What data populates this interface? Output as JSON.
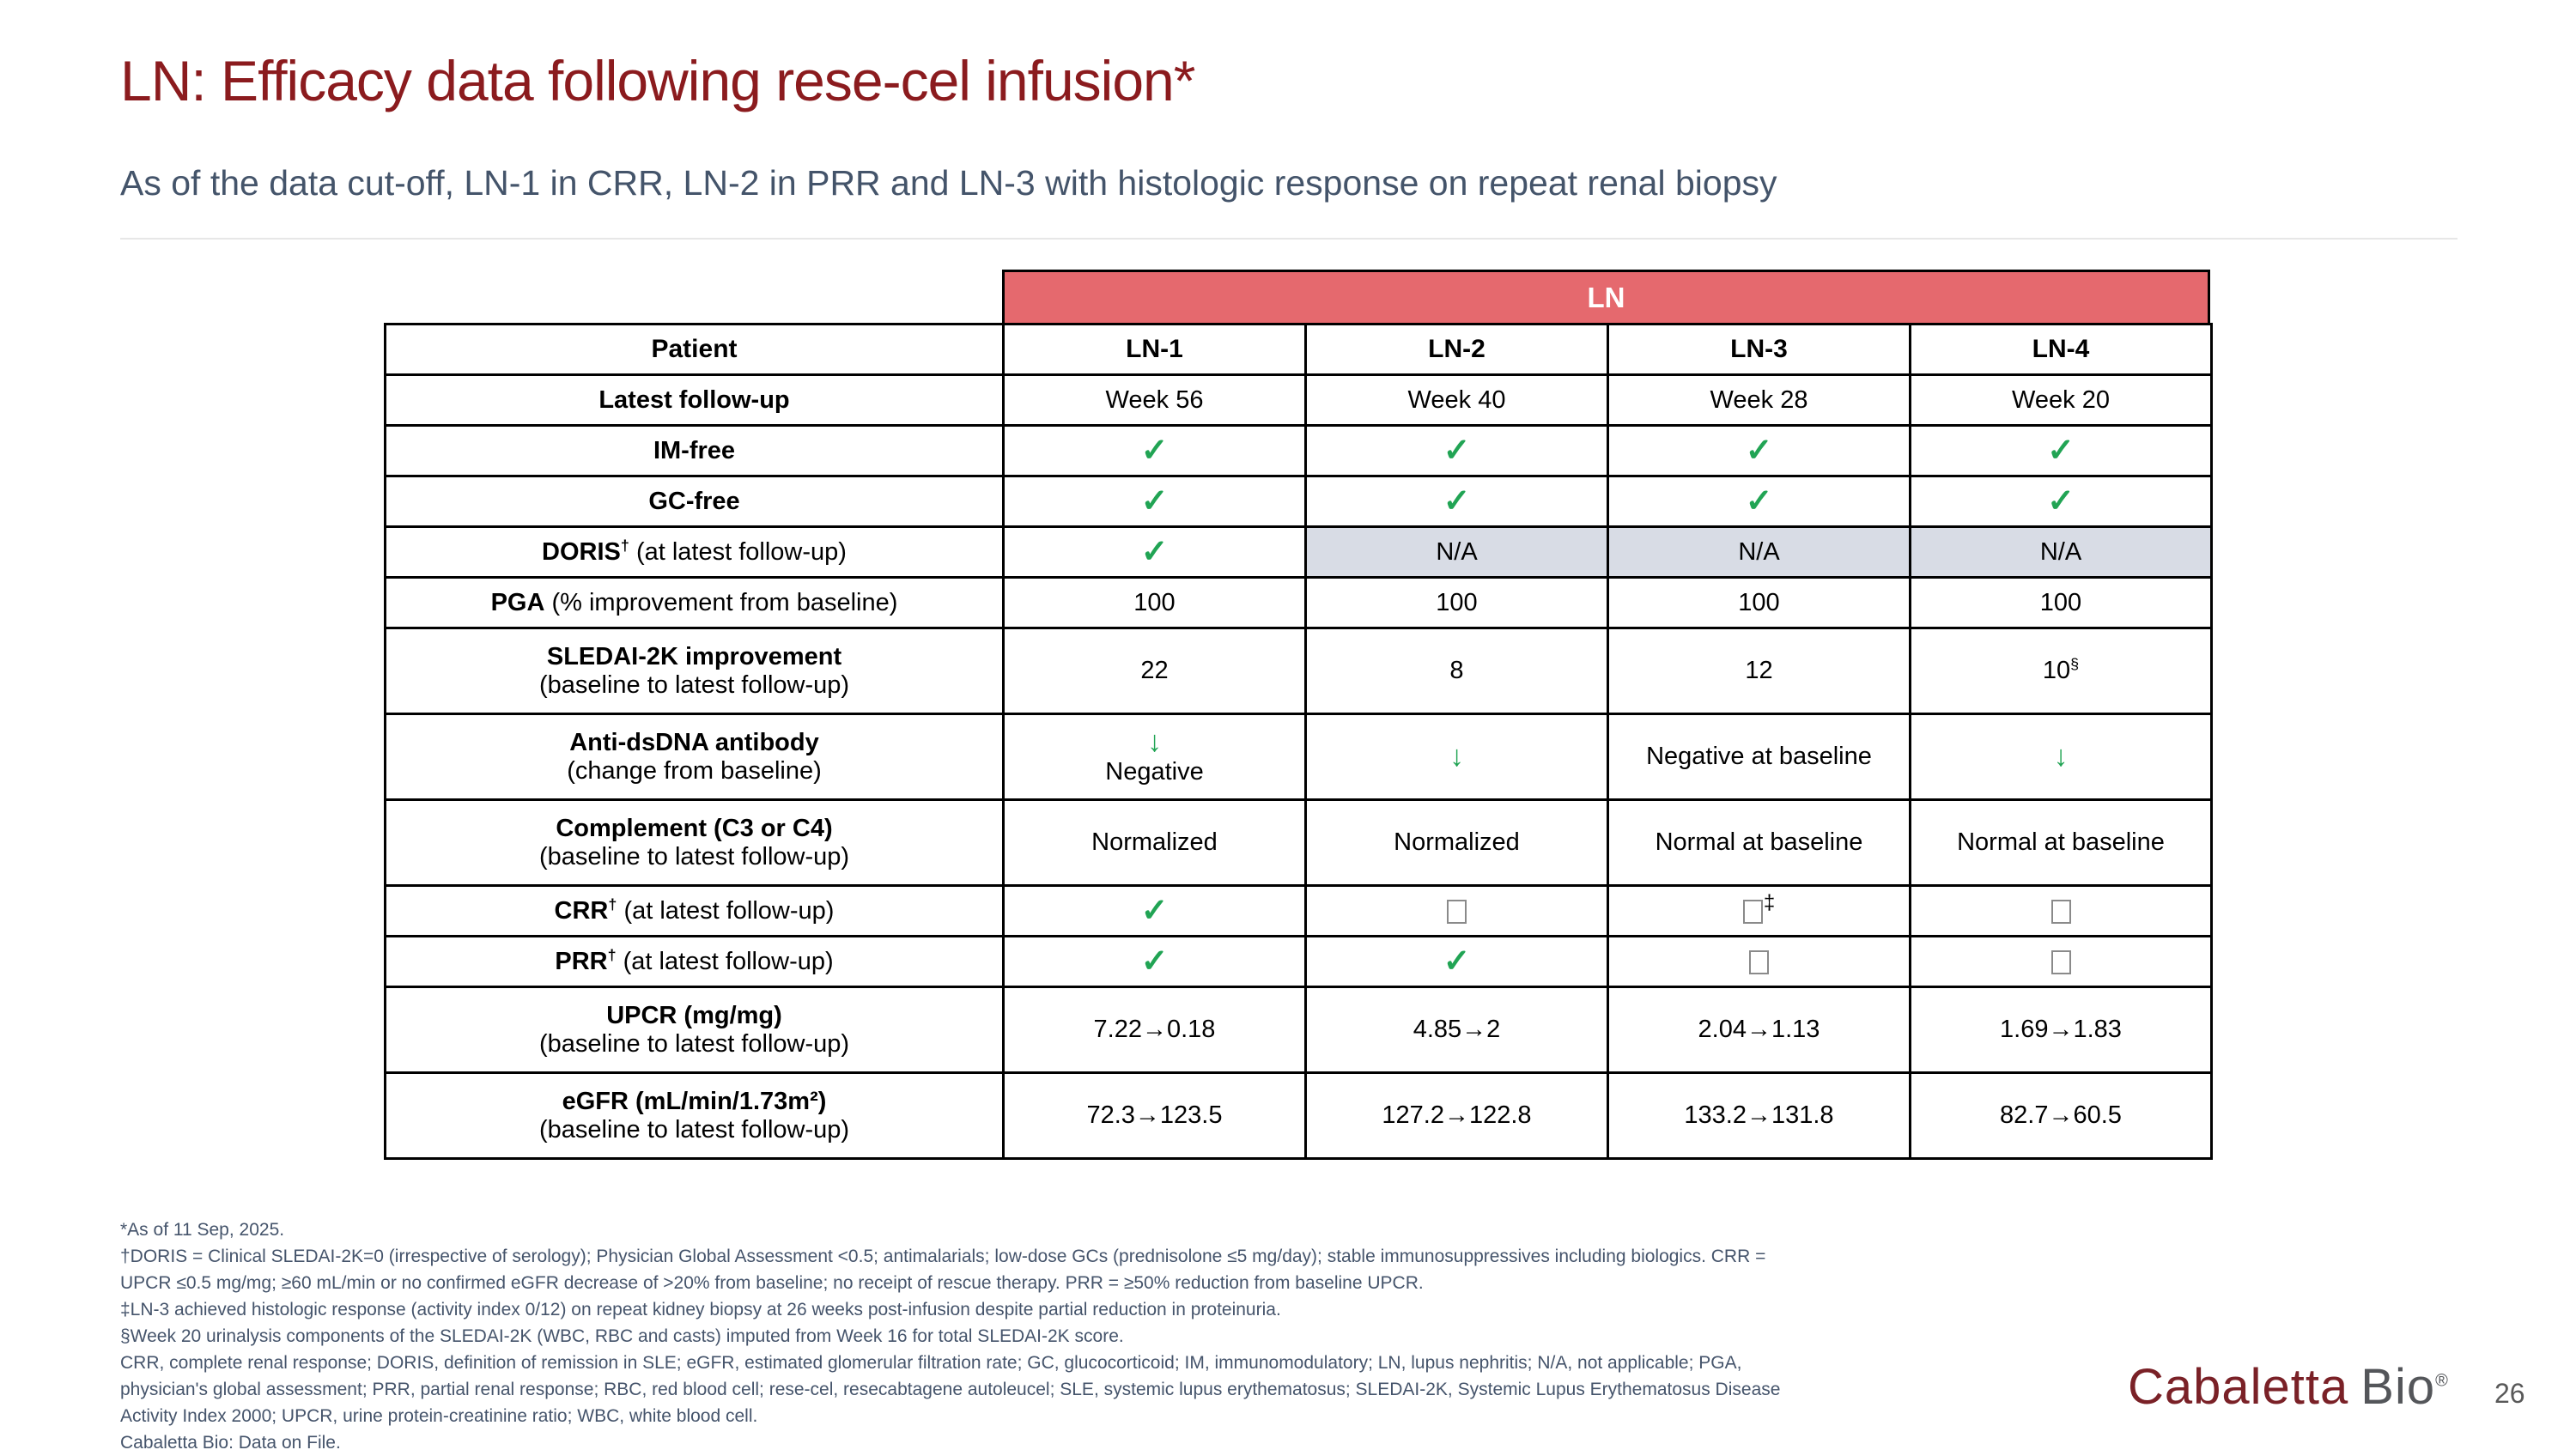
{
  "slide": {
    "title": "LN: Efficacy data following rese-cel infusion*",
    "subtitle": "As of the data cut-off, LN-1 in CRR, LN-2 in PRR and LN-3 with histologic response on repeat renal biopsy",
    "page_number": "26",
    "logo": {
      "part1": "Cabaletta",
      "part2": "Bio",
      "reg": "®"
    }
  },
  "icons": {
    "check_icon": "✓",
    "down_arrow_icon": "↓"
  },
  "colors": {
    "title_maroon": "#8B1B1E",
    "subtitle_slate": "#44546A",
    "banner_red": "#E5696E",
    "na_cell_bg": "#D8DCE5",
    "check_green": "#21A454",
    "logo_maroon": "#7A2127",
    "logo_gray": "#54565A"
  },
  "table": {
    "group_header": "LN",
    "row_label_header": "Patient",
    "columns": [
      "LN-1",
      "LN-2",
      "LN-3",
      "LN-4"
    ],
    "rows": [
      {
        "label": {
          "bold": "Latest follow-up"
        },
        "cells": [
          {
            "t": "text",
            "v": "Week 56"
          },
          {
            "t": "text",
            "v": "Week 40"
          },
          {
            "t": "text",
            "v": "Week 28"
          },
          {
            "t": "text",
            "v": "Week 20"
          }
        ]
      },
      {
        "label": {
          "bold": "IM-free"
        },
        "cells": [
          {
            "t": "check"
          },
          {
            "t": "check"
          },
          {
            "t": "check"
          },
          {
            "t": "check"
          }
        ]
      },
      {
        "label": {
          "bold": "GC-free"
        },
        "cells": [
          {
            "t": "check"
          },
          {
            "t": "check"
          },
          {
            "t": "check"
          },
          {
            "t": "check"
          }
        ]
      },
      {
        "label": {
          "bold": "DORIS",
          "sup": "†",
          "note": " (at latest follow-up)"
        },
        "cells": [
          {
            "t": "check"
          },
          {
            "t": "text",
            "v": "N/A",
            "na": true
          },
          {
            "t": "text",
            "v": "N/A",
            "na": true
          },
          {
            "t": "text",
            "v": "N/A",
            "na": true
          }
        ]
      },
      {
        "label": {
          "bold": "PGA",
          "note": " (% improvement from baseline)"
        },
        "cells": [
          {
            "t": "text",
            "v": "100"
          },
          {
            "t": "text",
            "v": "100"
          },
          {
            "t": "text",
            "v": "100"
          },
          {
            "t": "text",
            "v": "100"
          }
        ]
      },
      {
        "label": {
          "bold": "SLEDAI-2K improvement",
          "sub": "(baseline to latest follow-up)"
        },
        "tall": true,
        "cells": [
          {
            "t": "text",
            "v": "22"
          },
          {
            "t": "text",
            "v": "8"
          },
          {
            "t": "text",
            "v": "12"
          },
          {
            "t": "text",
            "v": "10",
            "sup": "§"
          }
        ]
      },
      {
        "label": {
          "bold": "Anti-dsDNA antibody",
          "sub": "(change from baseline)"
        },
        "tall": true,
        "cells": [
          {
            "t": "downtext",
            "v": "Negative"
          },
          {
            "t": "down"
          },
          {
            "t": "text",
            "v": "Negative at baseline"
          },
          {
            "t": "down"
          }
        ]
      },
      {
        "label": {
          "bold": "Complement (C3 or C4)",
          "sub": "(baseline to latest follow-up)"
        },
        "tall": true,
        "cells": [
          {
            "t": "text",
            "v": "Normalized"
          },
          {
            "t": "text",
            "v": "Normalized"
          },
          {
            "t": "text",
            "v": "Normal at baseline"
          },
          {
            "t": "text",
            "v": "Normal at baseline"
          }
        ]
      },
      {
        "label": {
          "bold": "CRR",
          "sup": "†",
          "note": " (at latest follow-up)"
        },
        "cells": [
          {
            "t": "check"
          },
          {
            "t": "box"
          },
          {
            "t": "box",
            "sup": "‡"
          },
          {
            "t": "box"
          }
        ]
      },
      {
        "label": {
          "bold": "PRR",
          "sup": "†",
          "note": " (at latest follow-up)"
        },
        "cells": [
          {
            "t": "check"
          },
          {
            "t": "check"
          },
          {
            "t": "box"
          },
          {
            "t": "box"
          }
        ]
      },
      {
        "label": {
          "bold": "UPCR (mg/mg)",
          "sub": "(baseline to latest follow-up)"
        },
        "tall": true,
        "cells": [
          {
            "t": "text",
            "v": "7.22→0.18"
          },
          {
            "t": "text",
            "v": "4.85→2"
          },
          {
            "t": "text",
            "v": "2.04→1.13"
          },
          {
            "t": "text",
            "v": "1.69→1.83"
          }
        ]
      },
      {
        "label": {
          "bold": "eGFR (mL/min/1.73m²)",
          "sub": "(baseline to latest follow-up)"
        },
        "tall": true,
        "cells": [
          {
            "t": "text",
            "v": "72.3→123.5"
          },
          {
            "t": "text",
            "v": "127.2→122.8"
          },
          {
            "t": "text",
            "v": "133.2→131.8"
          },
          {
            "t": "text",
            "v": "82.7→60.5"
          }
        ]
      }
    ]
  },
  "footnotes": [
    "*As of 11 Sep, 2025.",
    "†DORIS = Clinical SLEDAI-2K=0 (irrespective of serology); Physician Global Assessment <0.5; antimalarials; low-dose GCs (prednisolone ≤5 mg/day); stable immunosuppressives including biologics. CRR =",
    "UPCR ≤0.5 mg/mg; ≥60 mL/min or no confirmed eGFR decrease of >20% from baseline; no receipt of rescue therapy. PRR = ≥50% reduction from baseline UPCR.",
    "‡LN-3 achieved histologic response (activity index 0/12) on repeat kidney biopsy at 26 weeks post-infusion despite partial reduction in proteinuria.",
    "§Week 20 urinalysis components of the SLEDAI-2K (WBC, RBC and casts) imputed from Week 16 for total SLEDAI-2K score.",
    "CRR, complete renal response; DORIS, definition of remission in SLE; eGFR, estimated glomerular filtration rate; GC, glucocorticoid; IM, immunomodulatory; LN, lupus nephritis; N/A, not applicable; PGA,",
    "physician's global assessment; PRR, partial renal response; RBC, red blood cell; rese-cel, resecabtagene autoleucel; SLE, systemic lupus erythematosus; SLEDAI-2K, Systemic Lupus Erythematosus Disease",
    "Activity Index 2000; UPCR, urine protein-creatinine ratio; WBC, white blood cell.",
    "Cabaletta Bio: Data on File."
  ]
}
